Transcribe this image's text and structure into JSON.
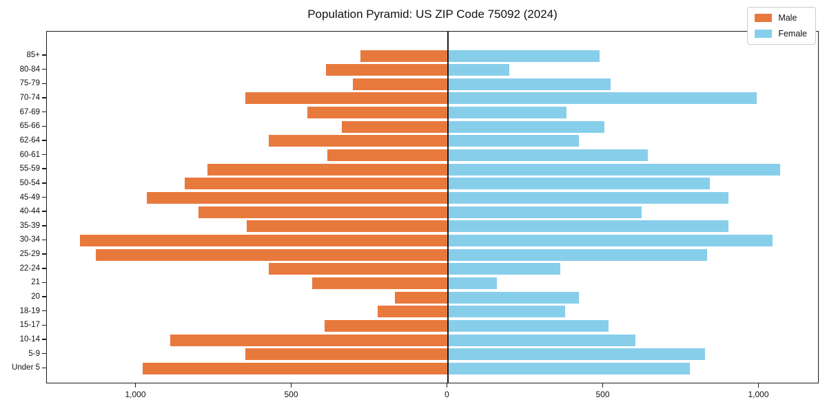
{
  "chart_data": {
    "type": "bar",
    "subtype": "population-pyramid",
    "orientation": "horizontal",
    "title": "Population Pyramid: US ZIP Code 75092 (2024)",
    "categories": [
      "85+",
      "80-84",
      "75-79",
      "70-74",
      "67-69",
      "65-66",
      "62-64",
      "60-61",
      "55-59",
      "50-54",
      "45-49",
      "40-44",
      "35-39",
      "30-34",
      "25-29",
      "22-24",
      "21",
      "20",
      "18-19",
      "15-17",
      "10-14",
      "5-9",
      "Under 5"
    ],
    "series": [
      {
        "name": "Male",
        "side": "left",
        "color": "#E8793D",
        "values": [
          280,
          390,
          305,
          650,
          450,
          340,
          575,
          385,
          770,
          845,
          965,
          800,
          645,
          1180,
          1130,
          575,
          435,
          170,
          225,
          395,
          890,
          650,
          980
        ]
      },
      {
        "name": "Female",
        "side": "right",
        "color": "#87CEEB",
        "values": [
          485,
          195,
          520,
          990,
          380,
          500,
          420,
          640,
          1065,
          840,
          900,
          620,
          900,
          1040,
          830,
          360,
          155,
          420,
          375,
          515,
          600,
          825,
          775
        ]
      }
    ],
    "x_axis": {
      "tick_labels": [
        "1,000",
        "500",
        "0",
        "500",
        "1,000"
      ],
      "tick_values": [
        -1000,
        -500,
        0,
        500,
        1000
      ],
      "left_max": 1288,
      "right_max": 1192,
      "grid": false
    },
    "legend": {
      "position": "upper-right",
      "entries": [
        "Male",
        "Female"
      ]
    },
    "zero_line_color": "#1a1a1a",
    "background_color": "#ffffff"
  }
}
